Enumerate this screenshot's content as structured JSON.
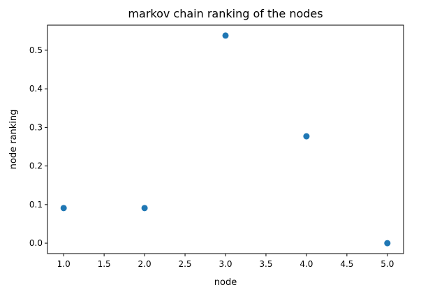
{
  "chart_data": {
    "type": "scatter",
    "title": "markov chain ranking of the nodes",
    "xlabel": "node",
    "ylabel": "node ranking",
    "xlim": [
      0.8,
      5.2
    ],
    "ylim": [
      -0.027,
      0.565
    ],
    "xticks": [
      1.0,
      1.5,
      2.0,
      2.5,
      3.0,
      3.5,
      4.0,
      4.5,
      5.0
    ],
    "xtick_labels": [
      "1.0",
      "1.5",
      "2.0",
      "2.5",
      "3.0",
      "3.5",
      "4.0",
      "4.5",
      "5.0"
    ],
    "yticks": [
      0.0,
      0.1,
      0.2,
      0.3,
      0.4,
      0.5
    ],
    "ytick_labels": [
      "0.0",
      "0.1",
      "0.2",
      "0.3",
      "0.4",
      "0.5"
    ],
    "grid": false,
    "color": "#1f77b4",
    "x": [
      1,
      2,
      3,
      4,
      5
    ],
    "y": [
      0.091,
      0.091,
      0.538,
      0.277,
      0.0
    ]
  }
}
